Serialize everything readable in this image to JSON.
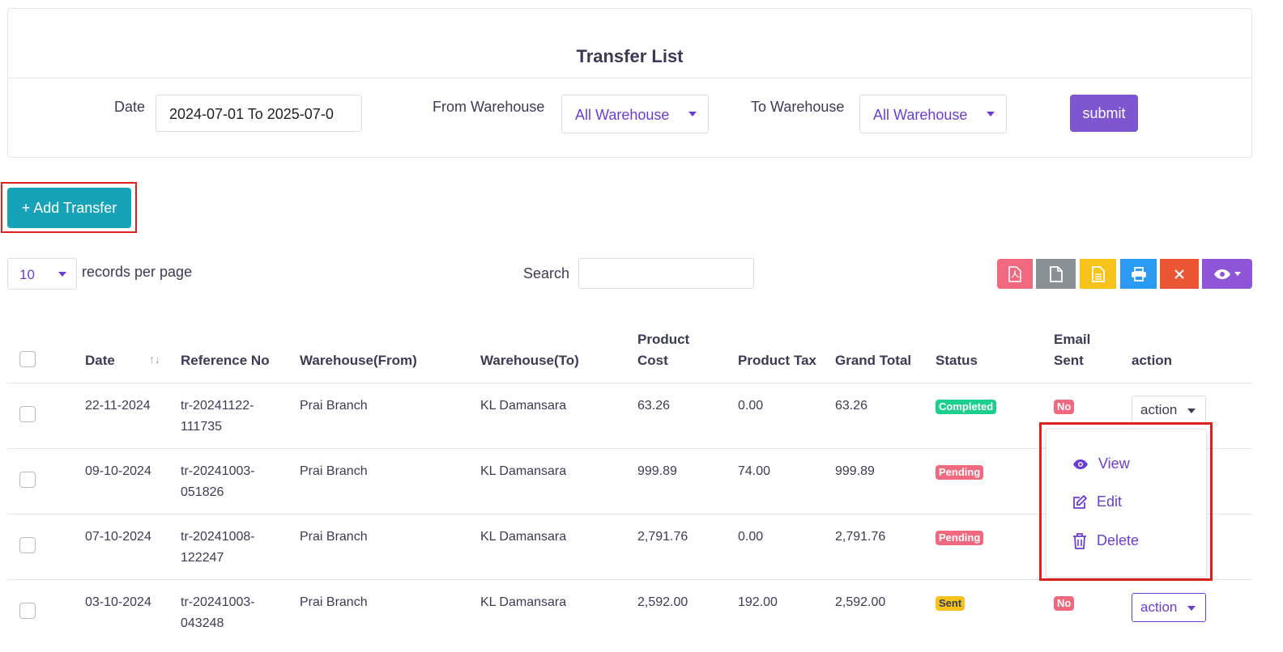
{
  "header": {
    "title": "Transfer List"
  },
  "filters": {
    "date_label": "Date",
    "date_value": "2024-07-01 To 2025-07-0",
    "from_label": "From Warehouse",
    "from_value": "All Warehouse",
    "to_label": "To Warehouse",
    "to_value": "All Warehouse",
    "submit_label": "submit"
  },
  "add_button": {
    "label": "+ Add Transfer"
  },
  "table_controls": {
    "per_page_value": "10",
    "per_page_label": "records per page",
    "search_label": "Search",
    "search_value": ""
  },
  "toolbar": {
    "buttons": [
      {
        "icon": "pdf-icon",
        "color": "#f1697e"
      },
      {
        "icon": "csv-icon",
        "color": "#8b8f96"
      },
      {
        "icon": "excel-icon",
        "color": "#f7c21a"
      },
      {
        "icon": "print-icon",
        "color": "#2b9af3"
      },
      {
        "icon": "delete-icon",
        "color": "#ea5534"
      },
      {
        "icon": "eye-icon",
        "color": "#8e55d6"
      }
    ]
  },
  "table": {
    "headers": {
      "date": "Date",
      "reference": "Reference No",
      "from": "Warehouse(From)",
      "to": "Warehouse(To)",
      "cost_line1": "Product",
      "cost_line2": "Cost",
      "tax": "Product Tax",
      "total": "Grand Total",
      "status": "Status",
      "email_line1": "Email",
      "email_line2": "Sent",
      "action": "action"
    },
    "rows": [
      {
        "date": "22-11-2024",
        "ref1": "tr-20241122-",
        "ref2": "111735",
        "from": "Prai Branch",
        "to": "KL Damansara",
        "cost": "63.26",
        "tax": "0.00",
        "total": "63.26",
        "status": "Completed",
        "email": "No",
        "action": "action"
      },
      {
        "date": "09-10-2024",
        "ref1": "tr-20241003-",
        "ref2": "051826",
        "from": "Prai Branch",
        "to": "KL Damansara",
        "cost": "999.89",
        "tax": "74.00",
        "total": "999.89",
        "status": "Pending",
        "email": "",
        "action": ""
      },
      {
        "date": "07-10-2024",
        "ref1": "tr-20241008-",
        "ref2": "122247",
        "from": "Prai Branch",
        "to": "KL Damansara",
        "cost": "2,791.76",
        "tax": "0.00",
        "total": "2,791.76",
        "status": "Pending",
        "email": "",
        "action": ""
      },
      {
        "date": "03-10-2024",
        "ref1": "tr-20241003-",
        "ref2": "043248",
        "from": "Prai Branch",
        "to": "KL Damansara",
        "cost": "2,592.00",
        "tax": "192.00",
        "total": "2,592.00",
        "status": "Sent",
        "email": "No",
        "action": "action"
      }
    ]
  },
  "status_colors": {
    "completed": "#1ccf8c",
    "pending": "#f1697e",
    "sent": "#f7c21a",
    "no": "#f1697e"
  },
  "action_menu": {
    "items": [
      {
        "label": "View",
        "icon": "eye-icon"
      },
      {
        "label": "Edit",
        "icon": "edit-icon"
      },
      {
        "label": "Delete",
        "icon": "trash-icon"
      }
    ]
  }
}
